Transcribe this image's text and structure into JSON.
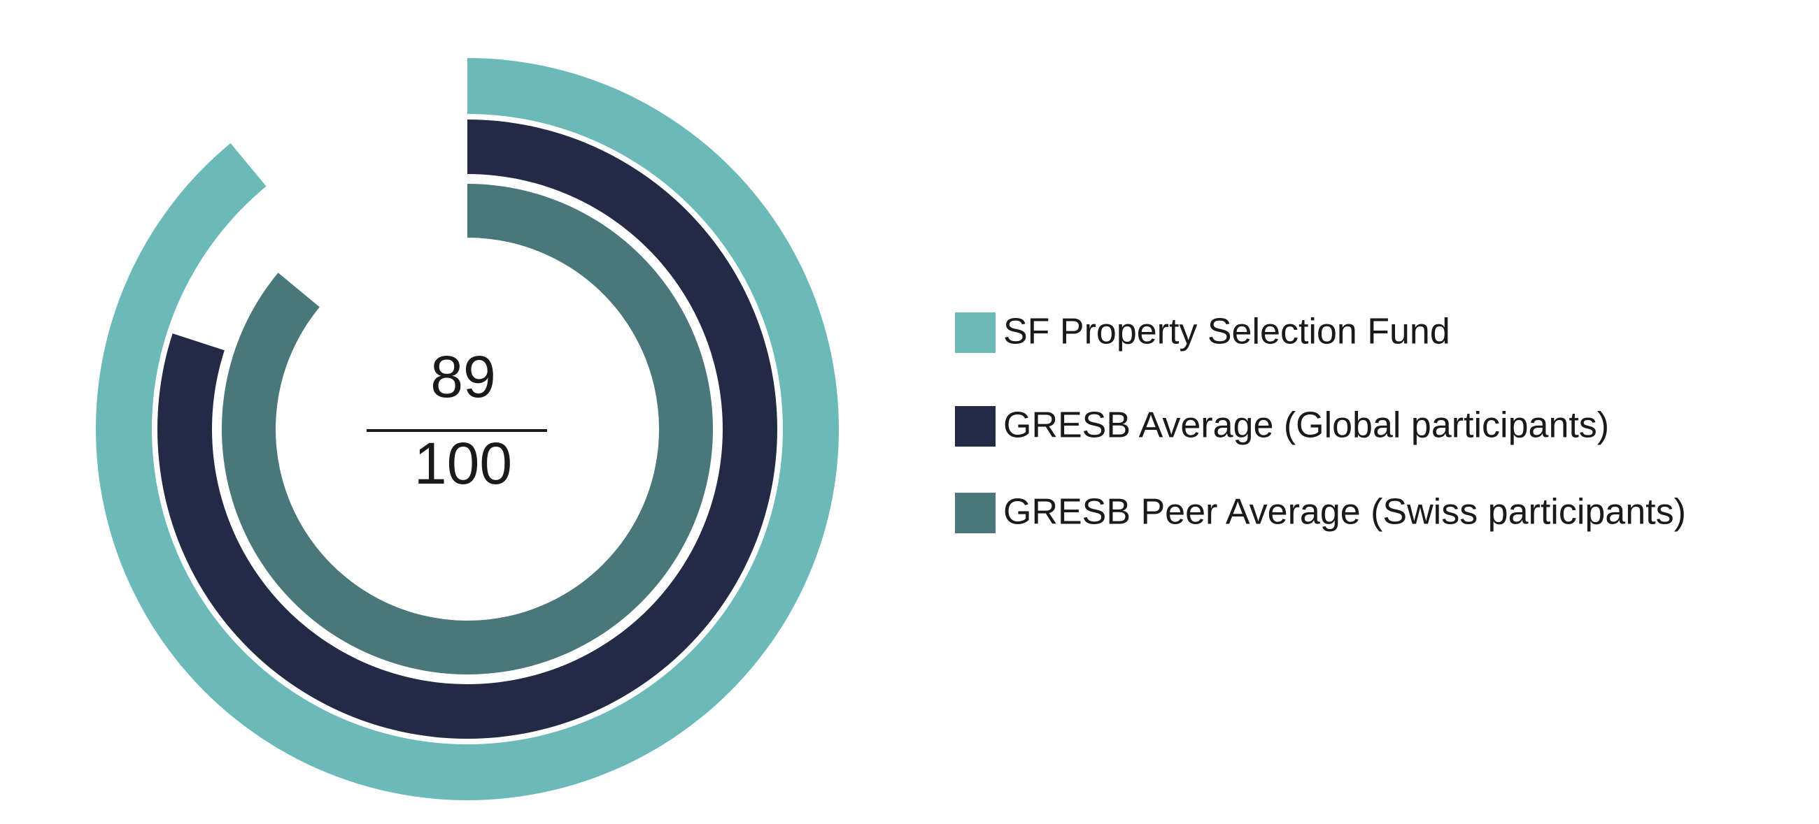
{
  "chart_data": {
    "type": "radial_bar",
    "rlim": [
      0,
      100
    ],
    "series": [
      {
        "name": "SF Property Selection Fund",
        "color": "#6cb9b9",
        "values": [
          89
        ]
      },
      {
        "name": "GRESB Average (Global participants)",
        "color": "#232a46",
        "values": [
          80
        ]
      },
      {
        "name": "GRESB Peer Average (Swiss participants)",
        "color": "#4a7779",
        "values": [
          86
        ]
      }
    ]
  }
}
